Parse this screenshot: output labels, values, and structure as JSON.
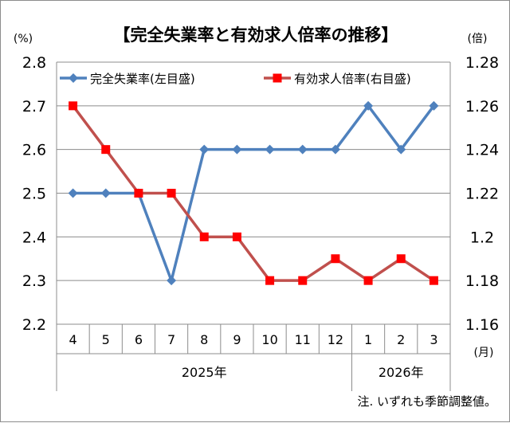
{
  "chart_data": {
    "type": "line",
    "title": "【完全失業率と有効求人倍率の推移】",
    "left_axis_unit": "(%)",
    "right_axis_unit": "(倍)",
    "month_unit": "(月)",
    "note": "注. いずれも季節調整値。",
    "categories": [
      "4",
      "5",
      "6",
      "7",
      "8",
      "9",
      "10",
      "11",
      "12",
      "1",
      "2",
      "3"
    ],
    "year_groups": [
      {
        "label": "2025年",
        "span": 9
      },
      {
        "label": "2026年",
        "span": 3
      }
    ],
    "y_left": {
      "ylim": [
        2.2,
        2.8
      ],
      "ticks": [
        "2.2",
        "2.3",
        "2.4",
        "2.5",
        "2.6",
        "2.7",
        "2.8"
      ]
    },
    "y_right": {
      "ylim": [
        1.16,
        1.28
      ],
      "ticks": [
        "1.16",
        "1.18",
        "1.2",
        "1.22",
        "1.24",
        "1.26",
        "1.28"
      ]
    },
    "grid": true,
    "legend_position": "top",
    "series": [
      {
        "name": "完全失業率(左目盛)",
        "axis": "left",
        "color": "#4f81bd",
        "marker": "diamond",
        "values": [
          2.5,
          2.5,
          2.5,
          2.3,
          2.6,
          2.6,
          2.6,
          2.6,
          2.6,
          2.7,
          2.6,
          2.7
        ]
      },
      {
        "name": "有効求人倍率(右目盛)",
        "axis": "right",
        "color": "#c0504d",
        "marker_color": "#ff0000",
        "marker": "square",
        "values": [
          1.26,
          1.24,
          1.22,
          1.22,
          1.2,
          1.2,
          1.18,
          1.18,
          1.19,
          1.18,
          1.19,
          1.18
        ]
      }
    ]
  }
}
